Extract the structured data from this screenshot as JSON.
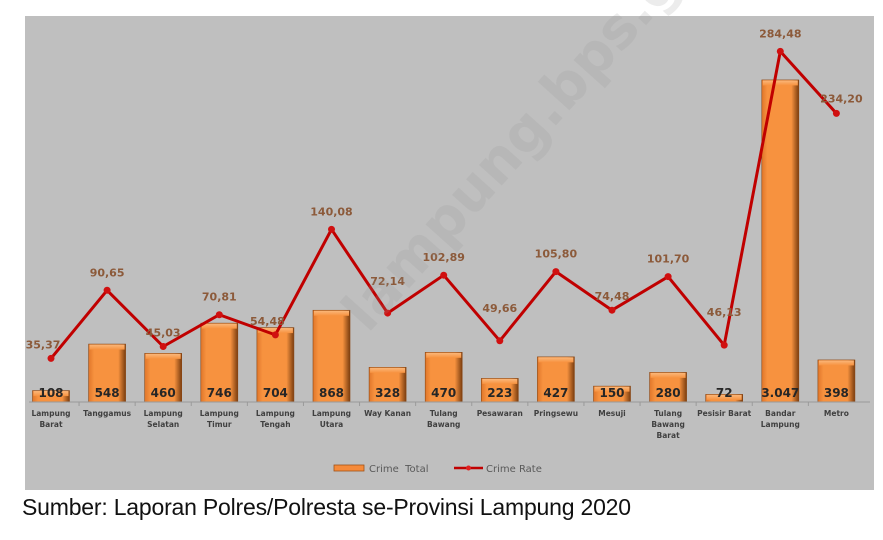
{
  "chart_data": {
    "type": "bar+line",
    "title": "",
    "xlabel": "",
    "ylabel": "",
    "categories": [
      "Lampung Barat",
      "Tanggamus",
      "Lampung Selatan",
      "Lampung Timur",
      "Lampung Tengah",
      "Lampung Utara",
      "Way Kanan",
      "Tulang Bawang",
      "Pesawaran",
      "Pringsewu",
      "Mesuji",
      "Tulang Bawang Barat",
      "Pesisir Barat",
      "Bandar Lampung",
      "Metro"
    ],
    "category_lines": [
      [
        "Lampung",
        "Barat"
      ],
      [
        "Tanggamus"
      ],
      [
        "Lampung",
        "Selatan"
      ],
      [
        "Lampung",
        "Timur"
      ],
      [
        "Lampung",
        "Tengah"
      ],
      [
        "Lampung",
        "Utara"
      ],
      [
        "Way Kanan"
      ],
      [
        "Tulang",
        "Bawang"
      ],
      [
        "Pesawaran"
      ],
      [
        "Pringsewu"
      ],
      [
        "Mesuji"
      ],
      [
        "Tulang",
        "Bawang",
        "Barat"
      ],
      [
        "Pesisir Barat"
      ],
      [
        "Bandar",
        "Lampung"
      ],
      [
        "Metro"
      ]
    ],
    "series": [
      {
        "name": "Crime  Total",
        "type": "bar",
        "color": "#f58a3a",
        "values": [
          108,
          548,
          460,
          746,
          704,
          868,
          328,
          470,
          223,
          427,
          150,
          280,
          72,
          3047,
          398
        ],
        "labels": [
          "108",
          "548",
          "460",
          "746",
          "704",
          "868",
          "328",
          "470",
          "223",
          "427",
          "150",
          "280",
          "72",
          "3.047",
          "398"
        ]
      },
      {
        "name": "Crime Rate",
        "type": "line",
        "color": "#c00000",
        "values": [
          35.37,
          90.65,
          45.03,
          70.81,
          54.48,
          140.08,
          72.14,
          102.89,
          49.66,
          105.8,
          74.48,
          101.7,
          46.13,
          284.48,
          234.2
        ],
        "labels": [
          "35,37",
          "90,65",
          "45,03",
          "70,81",
          "54,48",
          "140,08",
          "72,14",
          "102,89",
          "49,66",
          "105,80",
          "74,48",
          "101,70",
          "46,13",
          "284,48",
          "234,20"
        ]
      }
    ],
    "grid": false,
    "legend_position": "bottom",
    "background": "#bfbfbf"
  },
  "legend": {
    "bar_label": "Crime  Total",
    "line_label": "Crime Rate"
  },
  "source_note": "Sumber: Laporan Polres/Polresta se-Provinsi Lampung 2020",
  "watermark": "lampung.bps.go.id"
}
